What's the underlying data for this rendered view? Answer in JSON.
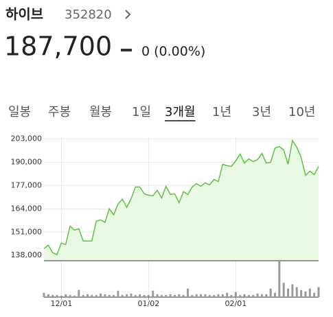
{
  "header": {
    "name": "하이브",
    "code": "352820",
    "price": "187,700",
    "change": "0",
    "change_pct": "(0.00%)"
  },
  "tabs": {
    "items": [
      "일봉",
      "주봉",
      "월봉",
      "1일",
      "3개월",
      "1년",
      "3년",
      "10년"
    ],
    "selected": 4
  },
  "chart_data": {
    "type": "line",
    "categories": [
      null,
      null,
      null,
      null,
      "12/01",
      null,
      null,
      null,
      null,
      null,
      null,
      null,
      null,
      null,
      null,
      null,
      null,
      null,
      null,
      null,
      null,
      null,
      null,
      null,
      "01/02",
      null,
      null,
      null,
      null,
      null,
      null,
      null,
      null,
      null,
      null,
      null,
      null,
      null,
      null,
      null,
      null,
      null,
      null,
      null,
      "02/01",
      null,
      null,
      null,
      null,
      null,
      null,
      null,
      null,
      null,
      null,
      null,
      null,
      null,
      null,
      null,
      null,
      null,
      null,
      null
    ],
    "series": [
      {
        "color": "#5ec43f",
        "fill": "#e9f8e3",
        "values": [
          141800,
          143700,
          139500,
          138400,
          144900,
          144100,
          154400,
          152100,
          152900,
          146000,
          146000,
          146000,
          157100,
          157900,
          156400,
          164000,
          160600,
          166700,
          169400,
          164800,
          169700,
          176200,
          176200,
          172400,
          171600,
          171300,
          174300,
          170100,
          176600,
          172000,
          172400,
          167400,
          173600,
          172000,
          176200,
          178100,
          176600,
          178500,
          177400,
          180400,
          179300,
          188900,
          188100,
          187700,
          190800,
          194600,
          189600,
          191900,
          190400,
          191500,
          195000,
          189600,
          190000,
          198000,
          198800,
          196900,
          188900,
          202200,
          198400,
          192700,
          182700,
          185000,
          183100,
          187700
        ]
      }
    ],
    "volume": {
      "color": "#9a9a9a",
      "values": [
        6,
        4,
        3,
        3,
        2,
        4,
        3,
        2,
        10,
        3,
        4,
        3,
        3,
        5,
        4,
        3,
        3,
        9,
        3,
        4,
        5,
        3,
        4,
        3,
        3,
        9,
        4,
        3,
        3,
        4,
        3,
        4,
        3,
        12,
        3,
        4,
        4,
        4,
        3,
        3,
        4,
        4,
        6,
        3,
        7,
        3,
        4,
        3,
        3,
        5,
        4,
        4,
        12,
        6,
        50,
        20,
        12,
        18,
        14,
        10,
        8,
        12,
        6,
        14
      ]
    },
    "ylim": [
      135000,
      204000
    ],
    "yticks": [
      {
        "value": 138000,
        "label": "138,000"
      },
      {
        "value": 151000,
        "label": "151,000"
      },
      {
        "value": 164000,
        "label": "164,000"
      },
      {
        "value": 177000,
        "label": "177,000"
      },
      {
        "value": 190000,
        "label": "190,000"
      },
      {
        "value": 203000,
        "label": "203,000"
      }
    ],
    "grid": true
  }
}
